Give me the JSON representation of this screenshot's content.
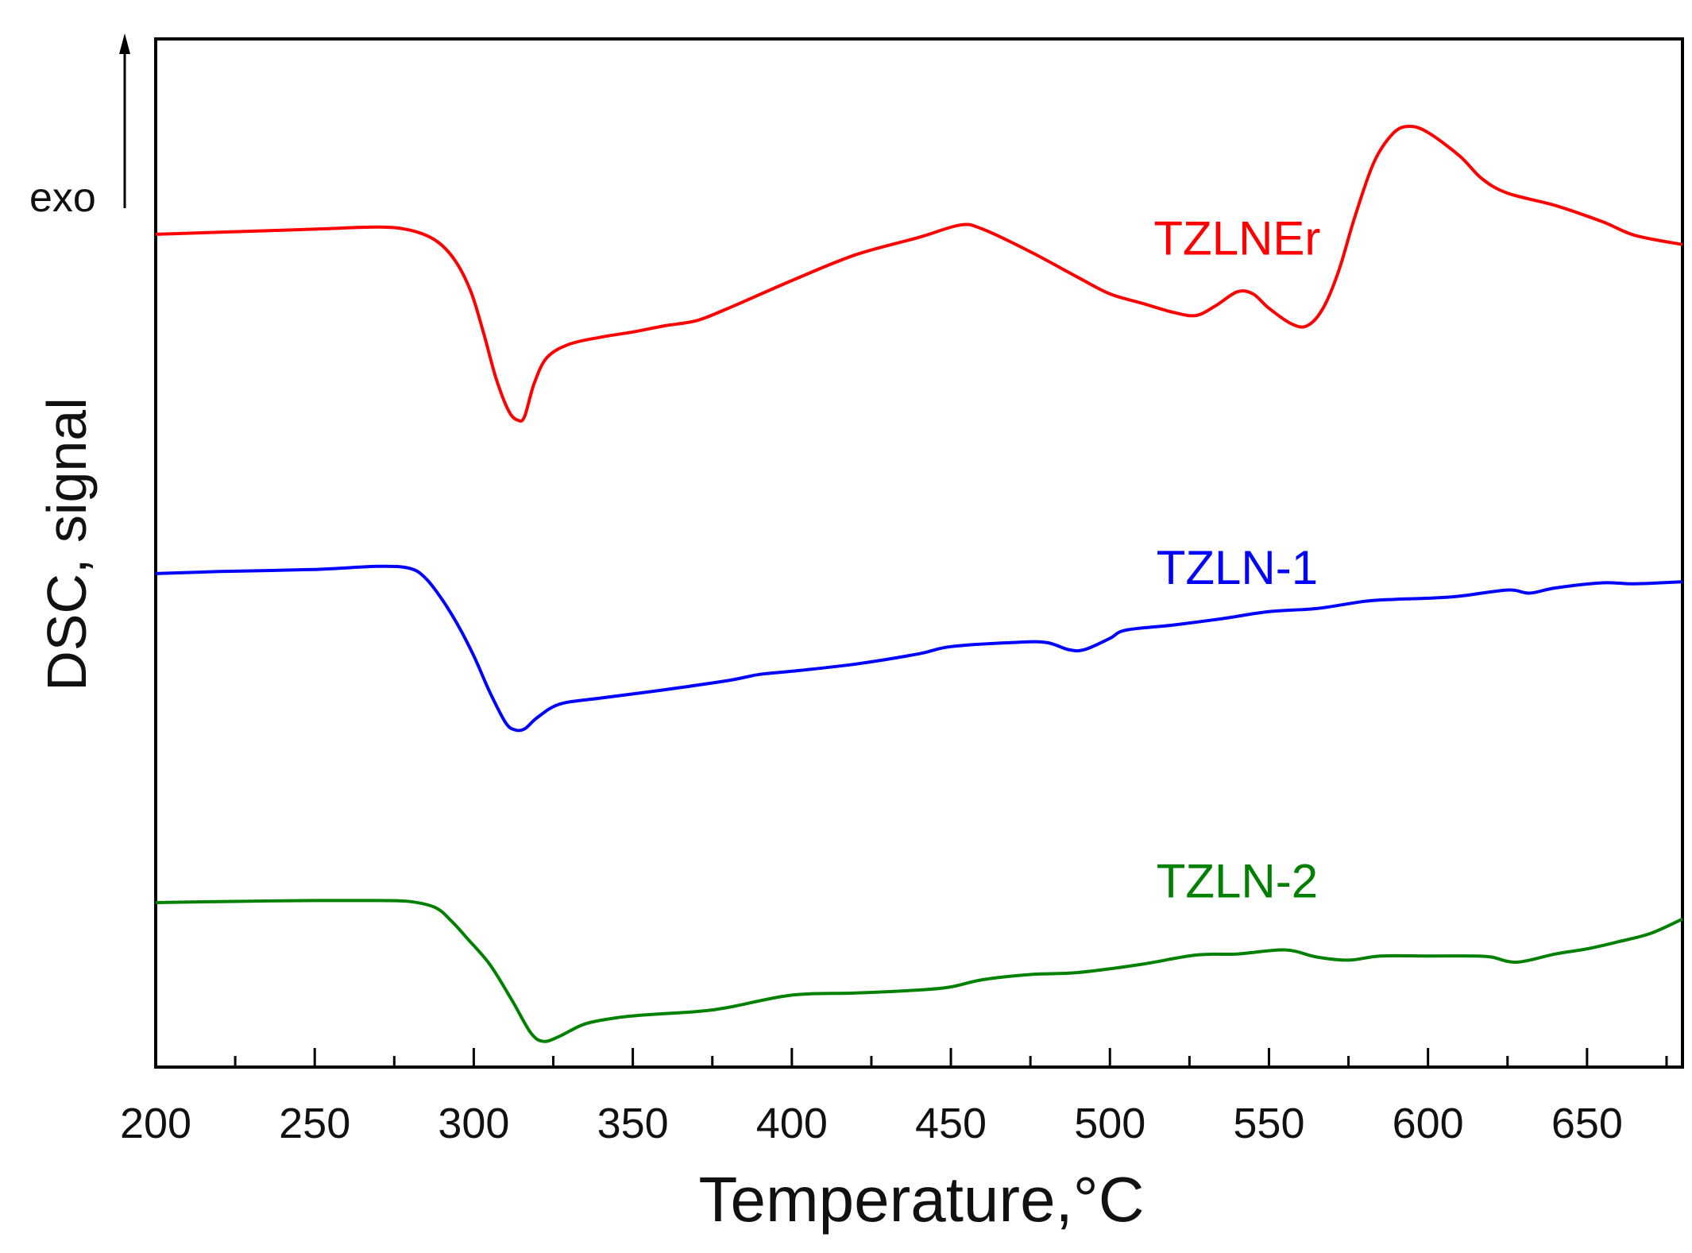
{
  "chart_data": {
    "type": "line",
    "xlabel": "Temperature,°C",
    "ylabel": "DSC, signal",
    "xlim": [
      200,
      680
    ],
    "ylim": [
      0,
      100
    ],
    "x_ticks": [
      200,
      250,
      300,
      350,
      400,
      450,
      500,
      550,
      600,
      650
    ],
    "x_tick_labels": [
      "200",
      "250",
      "300",
      "350",
      "400",
      "450",
      "500",
      "550",
      "600",
      "650"
    ],
    "exo_label": "exo",
    "series": [
      {
        "name": "TZLNEr",
        "color": "#ff0000",
        "label_at": [
          540,
          79
        ],
        "points": [
          [
            200,
            81
          ],
          [
            220,
            81.2
          ],
          [
            250,
            81.5
          ],
          [
            270,
            81.7
          ],
          [
            280,
            81.4
          ],
          [
            288,
            80.4
          ],
          [
            294,
            78.5
          ],
          [
            299,
            75.5
          ],
          [
            303,
            71.5
          ],
          [
            307,
            67.0
          ],
          [
            311,
            63.8
          ],
          [
            314,
            62.9
          ],
          [
            316,
            63.3
          ],
          [
            319,
            66.5
          ],
          [
            323,
            69.0
          ],
          [
            330,
            70.3
          ],
          [
            340,
            71.0
          ],
          [
            350,
            71.5
          ],
          [
            360,
            72.1
          ],
          [
            370,
            72.6
          ],
          [
            380,
            73.8
          ],
          [
            400,
            76.5
          ],
          [
            420,
            79.0
          ],
          [
            440,
            80.7
          ],
          [
            453,
            81.9
          ],
          [
            460,
            81.5
          ],
          [
            475,
            79.3
          ],
          [
            490,
            76.8
          ],
          [
            500,
            75.2
          ],
          [
            510,
            74.3
          ],
          [
            520,
            73.4
          ],
          [
            527,
            73.1
          ],
          [
            533,
            74.0
          ],
          [
            540,
            75.4
          ],
          [
            545,
            75.2
          ],
          [
            550,
            73.8
          ],
          [
            557,
            72.3
          ],
          [
            562,
            72.1
          ],
          [
            567,
            73.8
          ],
          [
            572,
            77.5
          ],
          [
            577,
            82.7
          ],
          [
            583,
            88.0
          ],
          [
            589,
            90.8
          ],
          [
            594,
            91.5
          ],
          [
            600,
            90.9
          ],
          [
            610,
            88.6
          ],
          [
            617,
            86.4
          ],
          [
            625,
            85.0
          ],
          [
            640,
            83.8
          ],
          [
            655,
            82.2
          ],
          [
            665,
            80.9
          ],
          [
            680,
            80.0
          ]
        ]
      },
      {
        "name": "TZLN-1",
        "color": "#0000ff",
        "label_at": [
          540,
          47
        ],
        "points": [
          [
            200,
            48
          ],
          [
            220,
            48.2
          ],
          [
            250,
            48.4
          ],
          [
            270,
            48.7
          ],
          [
            280,
            48.5
          ],
          [
            285,
            47.5
          ],
          [
            290,
            45.5
          ],
          [
            295,
            43.0
          ],
          [
            300,
            40.0
          ],
          [
            305,
            36.5
          ],
          [
            310,
            33.5
          ],
          [
            313,
            32.8
          ],
          [
            316,
            32.9
          ],
          [
            320,
            34.0
          ],
          [
            327,
            35.3
          ],
          [
            340,
            35.9
          ],
          [
            360,
            36.7
          ],
          [
            380,
            37.6
          ],
          [
            390,
            38.2
          ],
          [
            400,
            38.5
          ],
          [
            420,
            39.2
          ],
          [
            440,
            40.2
          ],
          [
            450,
            40.9
          ],
          [
            470,
            41.3
          ],
          [
            480,
            41.3
          ],
          [
            487,
            40.6
          ],
          [
            492,
            40.6
          ],
          [
            500,
            41.7
          ],
          [
            505,
            42.5
          ],
          [
            520,
            43.0
          ],
          [
            535,
            43.6
          ],
          [
            550,
            44.3
          ],
          [
            565,
            44.6
          ],
          [
            580,
            45.3
          ],
          [
            590,
            45.5
          ],
          [
            600,
            45.6
          ],
          [
            610,
            45.8
          ],
          [
            625,
            46.4
          ],
          [
            632,
            46.1
          ],
          [
            640,
            46.6
          ],
          [
            655,
            47.1
          ],
          [
            665,
            47.0
          ],
          [
            680,
            47.2
          ]
        ]
      },
      {
        "name": "TZLN-2",
        "color": "#008000",
        "label_at": [
          540,
          16.5
        ],
        "points": [
          [
            200,
            16
          ],
          [
            220,
            16.1
          ],
          [
            250,
            16.2
          ],
          [
            270,
            16.2
          ],
          [
            280,
            16.1
          ],
          [
            288,
            15.5
          ],
          [
            293,
            14.2
          ],
          [
            298,
            12.5
          ],
          [
            305,
            10.0
          ],
          [
            312,
            6.5
          ],
          [
            318,
            3.3
          ],
          [
            322,
            2.5
          ],
          [
            327,
            3.0
          ],
          [
            335,
            4.2
          ],
          [
            345,
            4.8
          ],
          [
            355,
            5.1
          ],
          [
            370,
            5.4
          ],
          [
            380,
            5.8
          ],
          [
            400,
            7.0
          ],
          [
            420,
            7.2
          ],
          [
            440,
            7.5
          ],
          [
            450,
            7.8
          ],
          [
            460,
            8.5
          ],
          [
            475,
            9.0
          ],
          [
            490,
            9.2
          ],
          [
            510,
            10.0
          ],
          [
            527,
            10.9
          ],
          [
            540,
            11.0
          ],
          [
            555,
            11.4
          ],
          [
            565,
            10.7
          ],
          [
            575,
            10.4
          ],
          [
            585,
            10.8
          ],
          [
            600,
            10.8
          ],
          [
            615,
            10.8
          ],
          [
            620,
            10.7
          ],
          [
            628,
            10.2
          ],
          [
            640,
            11.0
          ],
          [
            650,
            11.5
          ],
          [
            660,
            12.2
          ],
          [
            670,
            13.0
          ],
          [
            680,
            14.4
          ]
        ]
      }
    ]
  }
}
